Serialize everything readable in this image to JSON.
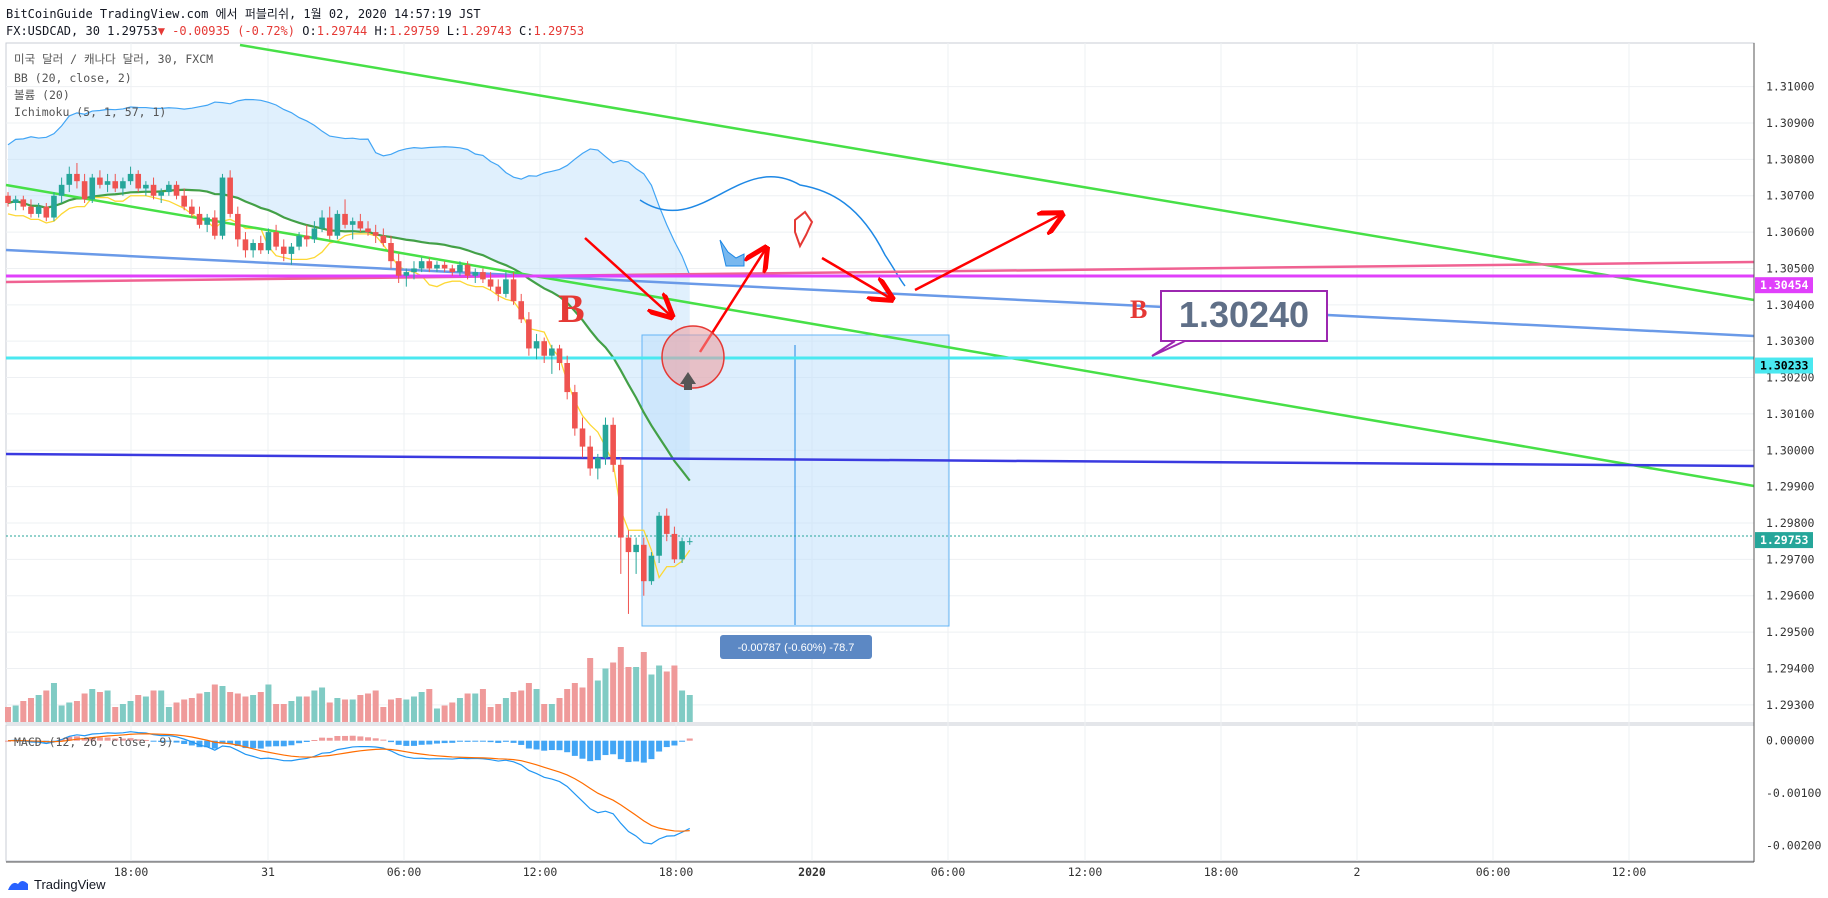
{
  "header": {
    "line1": "BitCoinGuide TradingView.com 에서 퍼블리쉬, 1월 02, 2020 14:57:19 JST",
    "symbol": "FX:USDCAD, 30",
    "last": "1.29753",
    "change": "▼ -0.00935 (-0.72%)",
    "o_label": "O:",
    "o": "1.29744",
    "h_label": "H:",
    "h": "1.29759",
    "l_label": "L:",
    "l": "1.29743",
    "c_label": "C:",
    "c": "1.29753"
  },
  "legend": {
    "title": "미국 달러 / 캐나다 달러, 30, FXCM",
    "bb": "BB (20, close, 2)",
    "volume": "볼륨 (20)",
    "ichimoku": "Ichimoku (5, 1, 57, 1)",
    "macd": "MACD (12, 26, close, 9)"
  },
  "annotations": {
    "label_b_left": "B",
    "label_b_right": "B",
    "price_callout": "1.30240",
    "measure_text": "-0.00787 (-0.60%) -78.7"
  },
  "brand": "TradingView",
  "colors": {
    "up": "#26a69a",
    "down": "#ef5350",
    "bb_mid": "#43a047",
    "kijun_yellow": "#fdd835",
    "trend_green": "#47e047",
    "trend_blue": "#6a9ae8",
    "support_blue": "#3a3ae0",
    "magenta": "#e040fb",
    "pink": "#f06292",
    "cyan": "#4ae8f0",
    "arrow_red": "#ff0000",
    "callout_border": "#9c27b0"
  },
  "chart_data": {
    "type": "candlestick",
    "instrument": "FX:USDCAD",
    "timeframe": "30",
    "price_axis": {
      "ylim": [
        1.2925,
        1.3112
      ],
      "ticks": [
        "1.31000",
        "1.30900",
        "1.30800",
        "1.30700",
        "1.30600",
        "1.30500",
        "1.30400",
        "1.30300",
        "1.30200",
        "1.30100",
        "1.30000",
        "1.29900",
        "1.29800",
        "1.29700",
        "1.29600",
        "1.29500",
        "1.29400",
        "1.29300"
      ],
      "badges": [
        {
          "value": "1.30454",
          "color": "#e040fb"
        },
        {
          "value": "1.30233",
          "color": "#4ae8f0"
        },
        {
          "value": "1.29753",
          "color": "#26a69a"
        }
      ]
    },
    "macd_axis": {
      "ylim": [
        -0.0023,
        0.0003
      ],
      "ticks": [
        "0.00000",
        "-0.00100",
        "-0.00200"
      ]
    },
    "time_ticks": [
      "18:00",
      "31",
      "06:00",
      "12:00",
      "18:00",
      "2020",
      "06:00",
      "12:00",
      "18:00",
      "2",
      "06:00",
      "12:00"
    ],
    "candles": [
      [
        1.307,
        1.3071,
        1.3067,
        1.3068
      ],
      [
        1.3068,
        1.307,
        1.3066,
        1.3069
      ],
      [
        1.3069,
        1.307,
        1.3066,
        1.3067
      ],
      [
        1.3067,
        1.3069,
        1.3064,
        1.3065
      ],
      [
        1.3065,
        1.3068,
        1.3064,
        1.3067
      ],
      [
        1.3067,
        1.3068,
        1.3063,
        1.3064
      ],
      [
        1.3064,
        1.3071,
        1.3063,
        1.307
      ],
      [
        1.307,
        1.3075,
        1.3068,
        1.3073
      ],
      [
        1.3073,
        1.3078,
        1.3071,
        1.3076
      ],
      [
        1.3076,
        1.3079,
        1.3072,
        1.3074
      ],
      [
        1.3074,
        1.3076,
        1.3068,
        1.3069
      ],
      [
        1.3069,
        1.3076,
        1.3068,
        1.3075
      ],
      [
        1.3075,
        1.3077,
        1.3072,
        1.3073
      ],
      [
        1.3073,
        1.3076,
        1.3071,
        1.3074
      ],
      [
        1.3074,
        1.3076,
        1.3071,
        1.3072
      ],
      [
        1.3072,
        1.3075,
        1.307,
        1.3074
      ],
      [
        1.3074,
        1.3078,
        1.3073,
        1.3076
      ],
      [
        1.3076,
        1.3077,
        1.3071,
        1.3072
      ],
      [
        1.3072,
        1.3074,
        1.307,
        1.3073
      ],
      [
        1.3073,
        1.3075,
        1.3069,
        1.307
      ],
      [
        1.307,
        1.3072,
        1.3068,
        1.3071
      ],
      [
        1.3071,
        1.3074,
        1.307,
        1.3073
      ],
      [
        1.3073,
        1.3074,
        1.3069,
        1.307
      ],
      [
        1.307,
        1.3072,
        1.3066,
        1.3067
      ],
      [
        1.3067,
        1.3069,
        1.3064,
        1.3065
      ],
      [
        1.3065,
        1.3067,
        1.3061,
        1.3062
      ],
      [
        1.3062,
        1.3065,
        1.306,
        1.3064
      ],
      [
        1.3064,
        1.3066,
        1.3058,
        1.3059
      ],
      [
        1.3059,
        1.3076,
        1.3058,
        1.3075
      ],
      [
        1.3075,
        1.3077,
        1.3064,
        1.3065
      ],
      [
        1.3065,
        1.3067,
        1.3056,
        1.3058
      ],
      [
        1.3058,
        1.306,
        1.3053,
        1.3055
      ],
      [
        1.3055,
        1.3058,
        1.3053,
        1.3057
      ],
      [
        1.3057,
        1.3059,
        1.3054,
        1.3055
      ],
      [
        1.3055,
        1.3061,
        1.3054,
        1.306
      ],
      [
        1.306,
        1.3062,
        1.3055,
        1.3056
      ],
      [
        1.3056,
        1.3058,
        1.3052,
        1.3054
      ],
      [
        1.3054,
        1.3057,
        1.3051,
        1.3056
      ],
      [
        1.3056,
        1.306,
        1.3055,
        1.3059
      ],
      [
        1.3059,
        1.3062,
        1.3056,
        1.3058
      ],
      [
        1.3058,
        1.3063,
        1.3057,
        1.3061
      ],
      [
        1.3061,
        1.3066,
        1.306,
        1.3064
      ],
      [
        1.3064,
        1.3067,
        1.3058,
        1.3059
      ],
      [
        1.3059,
        1.3066,
        1.3058,
        1.3065
      ],
      [
        1.3065,
        1.3069,
        1.3061,
        1.3062
      ],
      [
        1.3062,
        1.3064,
        1.3058,
        1.3063
      ],
      [
        1.3063,
        1.3065,
        1.306,
        1.3061
      ],
      [
        1.3061,
        1.3063,
        1.3059,
        1.306
      ],
      [
        1.306,
        1.3062,
        1.3057,
        1.3059
      ],
      [
        1.3059,
        1.3061,
        1.3056,
        1.3057
      ],
      [
        1.3057,
        1.3059,
        1.305,
        1.3052
      ],
      [
        1.3052,
        1.3054,
        1.3046,
        1.3048
      ],
      [
        1.3048,
        1.305,
        1.3045,
        1.3049
      ],
      [
        1.3049,
        1.3052,
        1.3047,
        1.305
      ],
      [
        1.305,
        1.3053,
        1.3049,
        1.3052
      ],
      [
        1.3052,
        1.3053,
        1.3049,
        1.305
      ],
      [
        1.305,
        1.3052,
        1.3049,
        1.3051
      ],
      [
        1.3051,
        1.3052,
        1.3049,
        1.305
      ],
      [
        1.305,
        1.3051,
        1.3048,
        1.3049
      ],
      [
        1.3049,
        1.3052,
        1.3048,
        1.3051
      ],
      [
        1.3051,
        1.3052,
        1.3047,
        1.3048
      ],
      [
        1.3048,
        1.305,
        1.3046,
        1.3049
      ],
      [
        1.3049,
        1.305,
        1.3046,
        1.3047
      ],
      [
        1.3047,
        1.3049,
        1.3044,
        1.3045
      ],
      [
        1.3045,
        1.3047,
        1.3041,
        1.3043
      ],
      [
        1.3043,
        1.3049,
        1.3042,
        1.3047
      ],
      [
        1.3047,
        1.3049,
        1.304,
        1.3041
      ],
      [
        1.3041,
        1.3043,
        1.3035,
        1.3036
      ],
      [
        1.3036,
        1.3038,
        1.3026,
        1.3028
      ],
      [
        1.3028,
        1.3032,
        1.3025,
        1.303
      ],
      [
        1.303,
        1.3031,
        1.3024,
        1.3026
      ],
      [
        1.3026,
        1.3029,
        1.3021,
        1.3028
      ],
      [
        1.3028,
        1.3029,
        1.3022,
        1.3024
      ],
      [
        1.3024,
        1.3026,
        1.3014,
        1.3016
      ],
      [
        1.3016,
        1.3018,
        1.3004,
        1.3006
      ],
      [
        1.3006,
        1.3009,
        1.2998,
        1.3001
      ],
      [
        1.3001,
        1.3004,
        1.2993,
        1.2995
      ],
      [
        1.2995,
        1.2999,
        1.2992,
        1.2998
      ],
      [
        1.2998,
        1.3009,
        1.2996,
        1.3007
      ],
      [
        1.3007,
        1.3009,
        1.2994,
        1.2996
      ],
      [
        1.2996,
        1.2998,
        1.2966,
        1.2976
      ],
      [
        1.2976,
        1.2978,
        1.2955,
        1.2972
      ],
      [
        1.2972,
        1.2976,
        1.2966,
        1.2974
      ],
      [
        1.2974,
        1.2976,
        1.296,
        1.2964
      ],
      [
        1.2964,
        1.2972,
        1.2963,
        1.2971
      ],
      [
        1.2971,
        1.2983,
        1.2969,
        1.2982
      ],
      [
        1.2982,
        1.2984,
        1.2975,
        1.2977
      ],
      [
        1.2977,
        1.2979,
        1.2969,
        1.297
      ],
      [
        1.297,
        1.2976,
        1.2969,
        1.2975
      ],
      [
        1.2975,
        1.2976,
        1.2974,
        1.2975
      ]
    ],
    "volume_scale_max": 1.0
  }
}
